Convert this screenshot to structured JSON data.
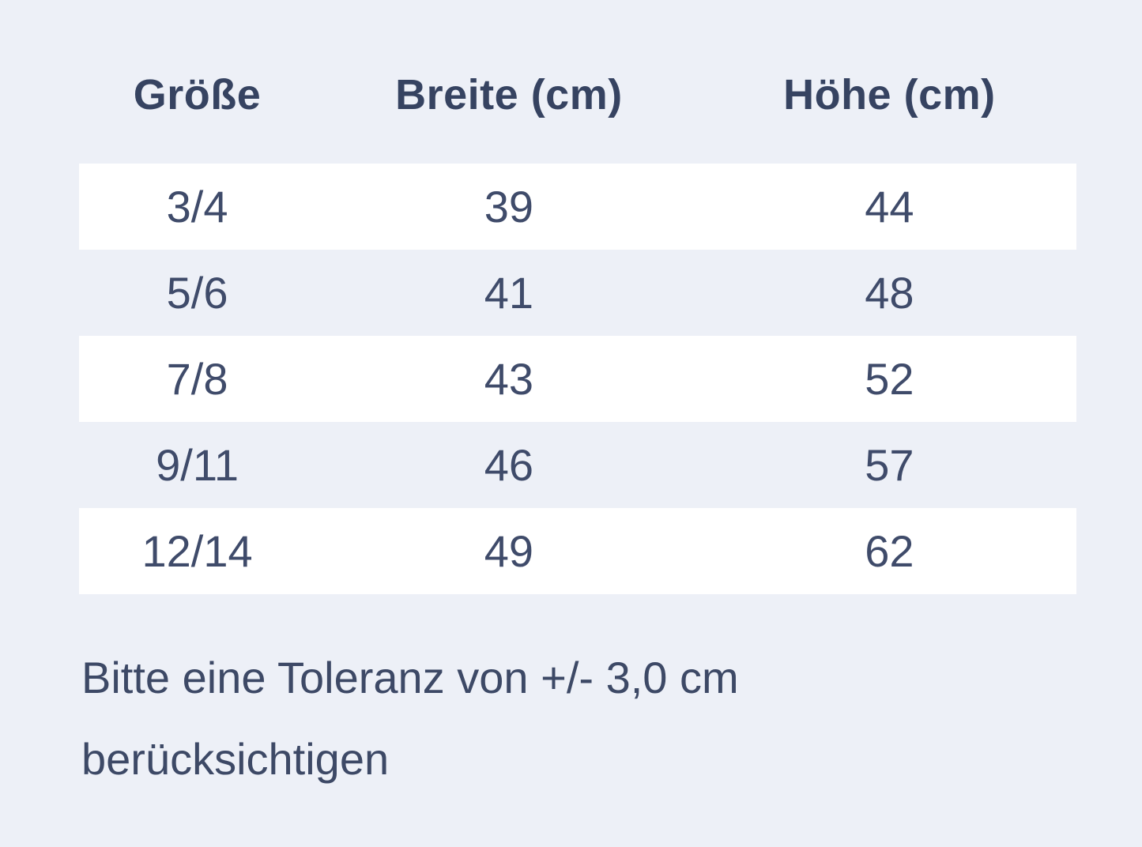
{
  "colors": {
    "page_background": "#edf0f7",
    "row_highlight": "#ffffff",
    "header_text": "#364361",
    "cell_text": "#3f4b6a",
    "note_text": "#3d4966"
  },
  "size_chart": {
    "columns": [
      {
        "label": "Größe"
      },
      {
        "label": "Breite (cm)"
      },
      {
        "label": "Höhe (cm)"
      }
    ],
    "rows": [
      {
        "groesse": "3/4",
        "breite": "39",
        "hoehe": "44"
      },
      {
        "groesse": "5/6",
        "breite": "41",
        "hoehe": "48"
      },
      {
        "groesse": "7/8",
        "breite": "43",
        "hoehe": "52"
      },
      {
        "groesse": "9/11",
        "breite": "46",
        "hoehe": "57"
      },
      {
        "groesse": "12/14",
        "breite": "49",
        "hoehe": "62"
      }
    ]
  },
  "note": {
    "line1": "Bitte eine Toleranz von +/- 3,0 cm",
    "line2": "berücksichtigen"
  }
}
